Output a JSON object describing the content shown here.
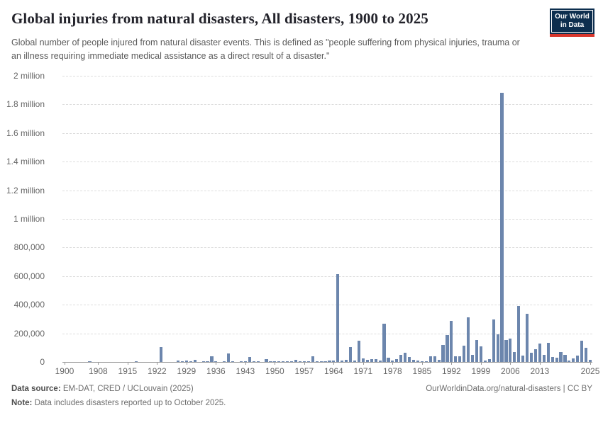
{
  "header": {
    "title": "Global injuries from natural disasters, All disasters, 1900 to 2025",
    "subtitle": "Global number of people injured from natural disaster events. This is defined as \"people suffering from physical injuries, trauma or an illness requiring immediate medical assistance as a direct result of a disaster.\"",
    "logo": {
      "line1": "Our World",
      "line2": "in Data"
    }
  },
  "chart_data": {
    "type": "bar",
    "title": "Global injuries from natural disasters, All disasters, 1900 to 2025",
    "x_start": 1900,
    "x_end": 2025,
    "values": [
      0,
      0,
      0,
      0,
      0,
      0,
      4000,
      0,
      0,
      0,
      0,
      0,
      0,
      0,
      0,
      0,
      0,
      2000,
      0,
      0,
      0,
      0,
      0,
      104000,
      0,
      0,
      0,
      10000,
      5000,
      12000,
      3000,
      13000,
      0,
      3000,
      3000,
      38000,
      3000,
      0,
      3000,
      58000,
      2000,
      0,
      3000,
      5000,
      35000,
      3000,
      3000,
      0,
      18000,
      5000,
      5000,
      4000,
      5000,
      6000,
      5000,
      15000,
      3000,
      5000,
      3000,
      40000,
      5000,
      4000,
      6000,
      8000,
      8000,
      615000,
      10000,
      15000,
      102000,
      12000,
      148000,
      25000,
      17000,
      20000,
      18000,
      12000,
      265000,
      28000,
      8000,
      21000,
      51000,
      63000,
      33000,
      17000,
      8000,
      5000,
      5000,
      42000,
      40000,
      17000,
      119000,
      188000,
      287000,
      40000,
      40000,
      114000,
      314000,
      48000,
      152000,
      110000,
      10000,
      20000,
      295000,
      195000,
      1880000,
      152000,
      165000,
      67000,
      390000,
      43000,
      335000,
      65000,
      90000,
      127000,
      50000,
      136000,
      37000,
      32000,
      69000,
      50000,
      12000,
      23000,
      45000,
      149000,
      99000,
      17000
    ],
    "ylim": [
      0,
      2000000
    ],
    "ytick_step": 200000,
    "ytick_labels_top_to_bottom": [
      "2 million",
      "1.8 million",
      "1.6 million",
      "1.4 million",
      "1.2 million",
      "1 million",
      "800,000",
      "600,000",
      "400,000",
      "200,000",
      "0"
    ],
    "xtick_years": [
      1900,
      1908,
      1915,
      1922,
      1929,
      1936,
      1943,
      1950,
      1957,
      1964,
      1971,
      1978,
      1985,
      1992,
      1999,
      2006,
      2013,
      2025
    ],
    "bar_color": "#6c86ad",
    "grid": "horizontal-dashed",
    "legend": "none"
  },
  "footer": {
    "source_label": "Data source:",
    "source_text": " EM-DAT, CRED / UCLouvain (2025)",
    "note_label": "Note:",
    "note_text": " Data includes disasters reported up to October 2025.",
    "link": "OurWorldinData.org/natural-disasters | CC BY"
  }
}
